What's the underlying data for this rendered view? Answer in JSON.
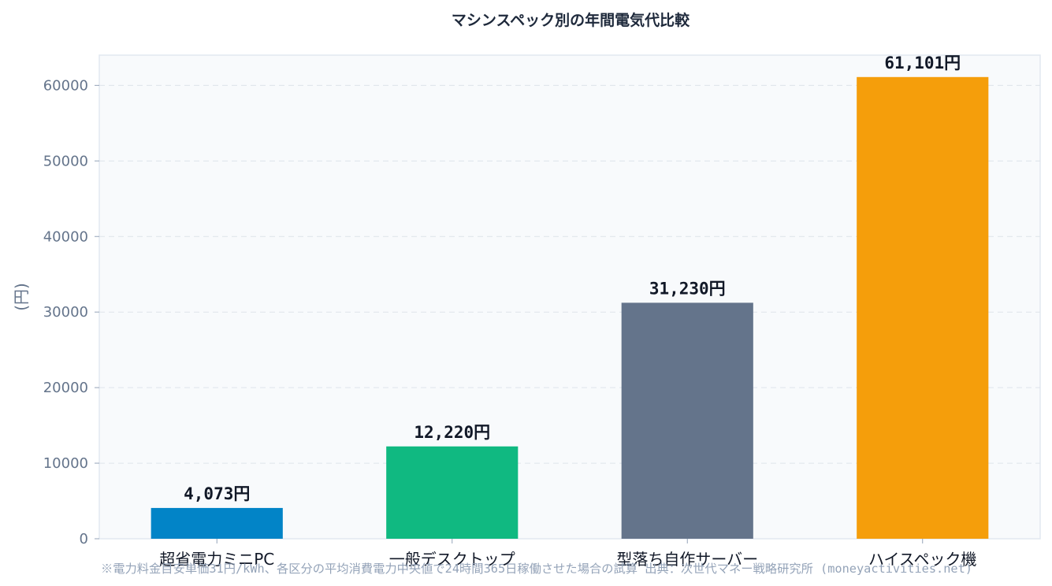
{
  "chart_data": {
    "type": "bar",
    "title": "マシンスペック別の年間電気代比較",
    "ylabel": "(円)",
    "xlabel": "",
    "ylim": [
      0,
      64000
    ],
    "yticks": [
      0,
      10000,
      20000,
      30000,
      40000,
      50000,
      60000
    ],
    "grid": true,
    "categories": [
      "超省電力ミニPC",
      "一般デスクトップ",
      "型落ち自作サーバー",
      "ハイスペック機"
    ],
    "values": [
      4073,
      12220,
      31230,
      61101
    ],
    "data_labels": [
      "4,073円",
      "12,220円",
      "31,230円",
      "61,101円"
    ],
    "colors": [
      "#0284c7",
      "#10b981",
      "#64748b",
      "#f59e0b"
    ],
    "footnote": "※電力料金目安単価31円/kWh、各区分の平均消費電力中央値で24時間365日稼働させた場合の試算 出典：次世代マネー戦略研究所 (moneyactivities.net)"
  }
}
